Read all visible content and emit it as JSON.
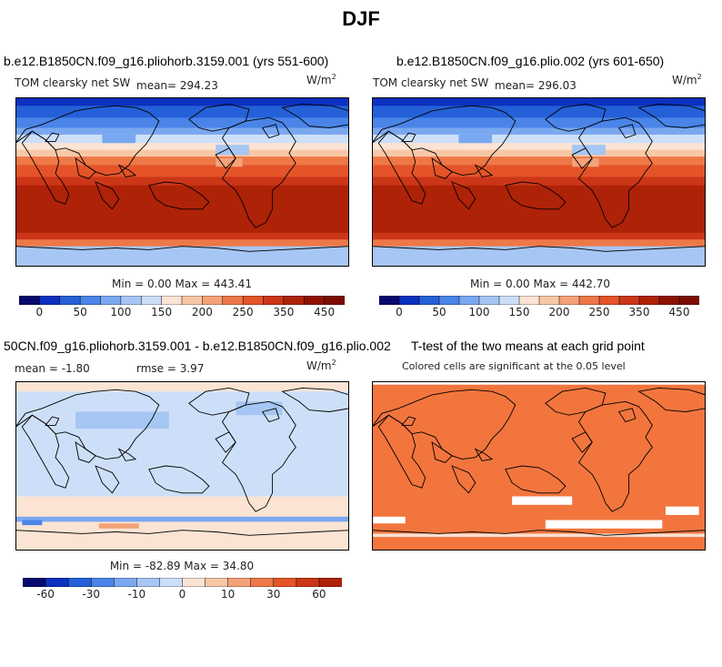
{
  "figure": {
    "season_title": "DJF"
  },
  "colors": {
    "cold_scale": [
      "#08086e",
      "#0c30c0",
      "#2460d8",
      "#4a84e8",
      "#7aa8f0",
      "#a6c6f4",
      "#cddff8",
      "#e8eefa"
    ],
    "warm_scale": [
      "#fbe4d4",
      "#f8c8a6",
      "#f4a278",
      "#ee7848",
      "#e45428",
      "#cc3618",
      "#ae2208",
      "#8e1200"
    ],
    "sig": "#f2753e",
    "coast": "#000000"
  },
  "chart_data": [
    {
      "type": "heatmap",
      "title": "b.e12.B1850CN.f09_g16.pliohorb.3159.001 (yrs 551-600)",
      "variable": "TOM clearsky net SW",
      "mean_label": "mean= 294.23",
      "units_text": "W/m",
      "units_exp": "2",
      "min_max": "Min =   0.00 Max = 443.41",
      "stats": {
        "mean": 294.23,
        "min": 0.0,
        "max": 443.41
      },
      "colorbar_ticks": [
        "0",
        "50",
        "100",
        "150",
        "200",
        "250",
        "350",
        "450"
      ],
      "colorbar_values": [
        0,
        50,
        100,
        150,
        200,
        250,
        350,
        450
      ]
    },
    {
      "type": "heatmap",
      "title": "b.e12.B1850CN.f09_g16.plio.002 (yrs 601-650)",
      "variable": "TOM clearsky net SW",
      "mean_label": "mean= 296.03",
      "units_text": "W/m",
      "units_exp": "2",
      "min_max": "Min =   0.00 Max = 442.70",
      "stats": {
        "mean": 296.03,
        "min": 0.0,
        "max": 442.7
      },
      "colorbar_ticks": [
        "0",
        "50",
        "100",
        "150",
        "200",
        "250",
        "350",
        "450"
      ],
      "colorbar_values": [
        0,
        50,
        100,
        150,
        200,
        250,
        350,
        450
      ]
    },
    {
      "type": "heatmap",
      "title": "50CN.f09_g16.pliohorb.3159.001 - b.e12.B1850CN.f09_g16.plio.002",
      "mean_label": "mean =  -1.80",
      "rmse_label": "rmse =   3.97",
      "units_text": "W/m",
      "units_exp": "2",
      "min_max": "Min = -82.89 Max =  34.80",
      "stats": {
        "mean": -1.8,
        "rmse": 3.97,
        "min": -82.89,
        "max": 34.8
      },
      "colorbar_ticks": [
        "-60",
        "-30",
        "-10",
        "0",
        "10",
        "30",
        "60"
      ],
      "colorbar_values": [
        -60,
        -30,
        -10,
        0,
        10,
        30,
        60
      ]
    },
    {
      "type": "heatmap",
      "title": "T-test of the two means at each grid point",
      "subtitle": "Colored cells are significant at the 0.05 level",
      "significance_level": 0.05
    }
  ]
}
